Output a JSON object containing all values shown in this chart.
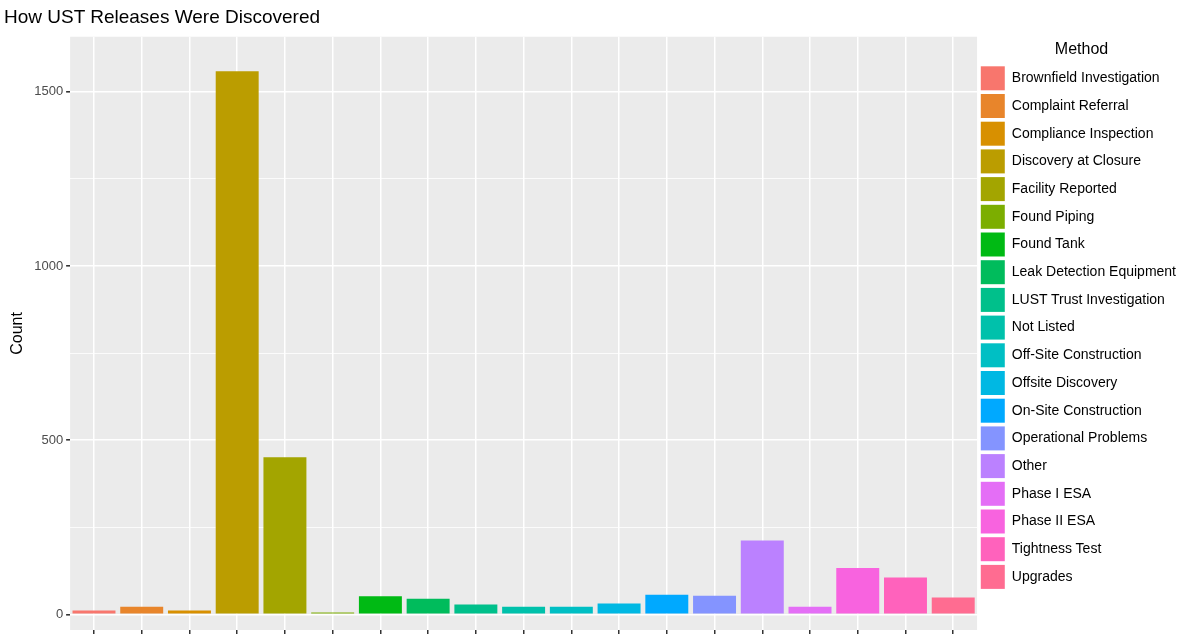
{
  "chart_data": {
    "type": "bar",
    "title": "How UST Releases Were Discovered",
    "ylabel": "Count",
    "legend_title": "Method",
    "categories": [
      null,
      null,
      null,
      null,
      null,
      null,
      null,
      null,
      null,
      null,
      null,
      null,
      null,
      null,
      null,
      null,
      null,
      null,
      null
    ],
    "series": [
      {
        "name": "Brownfield Investigation",
        "color": "#f8766d",
        "values": [
          11,
          null,
          null,
          null,
          null,
          null,
          null,
          null,
          null,
          null,
          null,
          null,
          null,
          null,
          null,
          null,
          null,
          null,
          null
        ]
      },
      {
        "name": "Complaint Referral",
        "color": "#e8852b",
        "values": [
          null,
          22,
          null,
          null,
          null,
          null,
          null,
          null,
          null,
          null,
          null,
          null,
          null,
          null,
          null,
          null,
          null,
          null,
          null
        ]
      },
      {
        "name": "Compliance Inspection",
        "color": "#d89000",
        "values": [
          null,
          null,
          11,
          null,
          null,
          null,
          null,
          null,
          null,
          null,
          null,
          null,
          null,
          null,
          null,
          null,
          null,
          null,
          null
        ]
      },
      {
        "name": "Discovery at Closure",
        "color": "#bb9d00",
        "values": [
          null,
          null,
          null,
          1559,
          null,
          null,
          null,
          null,
          null,
          null,
          null,
          null,
          null,
          null,
          null,
          null,
          null,
          null,
          null
        ]
      },
      {
        "name": "Facility Reported",
        "color": "#a3a500",
        "values": [
          null,
          null,
          null,
          null,
          451,
          null,
          null,
          null,
          null,
          null,
          null,
          null,
          null,
          null,
          null,
          null,
          null,
          null,
          null
        ]
      },
      {
        "name": "Found Piping",
        "color": "#7cae00",
        "values": [
          null,
          null,
          null,
          null,
          null,
          5,
          null,
          null,
          null,
          null,
          null,
          null,
          null,
          null,
          null,
          null,
          null,
          null,
          null
        ]
      },
      {
        "name": "Found Tank",
        "color": "#00ba14",
        "values": [
          null,
          null,
          null,
          null,
          null,
          null,
          52,
          null,
          null,
          null,
          null,
          null,
          null,
          null,
          null,
          null,
          null,
          null,
          null
        ]
      },
      {
        "name": "Leak Detection Equipment",
        "color": "#00bc5c",
        "values": [
          null,
          null,
          null,
          null,
          null,
          null,
          null,
          45,
          null,
          null,
          null,
          null,
          null,
          null,
          null,
          null,
          null,
          null,
          null
        ]
      },
      {
        "name": "LUST Trust Investigation",
        "color": "#00c08b",
        "values": [
          null,
          null,
          null,
          null,
          null,
          null,
          null,
          null,
          28,
          null,
          null,
          null,
          null,
          null,
          null,
          null,
          null,
          null,
          null
        ]
      },
      {
        "name": "Not Listed",
        "color": "#00c1ab",
        "values": [
          null,
          null,
          null,
          null,
          null,
          null,
          null,
          null,
          null,
          22,
          null,
          null,
          null,
          null,
          null,
          null,
          null,
          null,
          null
        ]
      },
      {
        "name": "Off-Site Construction",
        "color": "#00bfc4",
        "values": [
          null,
          null,
          null,
          null,
          null,
          null,
          null,
          null,
          null,
          null,
          22,
          null,
          null,
          null,
          null,
          null,
          null,
          null,
          null
        ]
      },
      {
        "name": "Offsite Discovery",
        "color": "#00b8e3",
        "values": [
          null,
          null,
          null,
          null,
          null,
          null,
          null,
          null,
          null,
          null,
          null,
          31,
          null,
          null,
          null,
          null,
          null,
          null,
          null
        ]
      },
      {
        "name": "On-Site Construction",
        "color": "#00a9ff",
        "values": [
          null,
          null,
          null,
          null,
          null,
          null,
          null,
          null,
          null,
          null,
          null,
          null,
          56,
          null,
          null,
          null,
          null,
          null,
          null
        ]
      },
      {
        "name": "Operational Problems",
        "color": "#8494ff",
        "values": [
          null,
          null,
          null,
          null,
          null,
          null,
          null,
          null,
          null,
          null,
          null,
          null,
          null,
          53,
          null,
          null,
          null,
          null,
          null
        ]
      },
      {
        "name": "Other",
        "color": "#bb81ff",
        "values": [
          null,
          null,
          null,
          null,
          null,
          null,
          null,
          null,
          null,
          null,
          null,
          null,
          null,
          null,
          212,
          null,
          null,
          null,
          null
        ]
      },
      {
        "name": "Phase I ESA",
        "color": "#e46ef6",
        "values": [
          null,
          null,
          null,
          null,
          null,
          null,
          null,
          null,
          null,
          null,
          null,
          null,
          null,
          null,
          null,
          22,
          null,
          null,
          null
        ]
      },
      {
        "name": "Phase II ESA",
        "color": "#f863df",
        "values": [
          null,
          null,
          null,
          null,
          null,
          null,
          null,
          null,
          null,
          null,
          null,
          null,
          null,
          null,
          null,
          null,
          133,
          null,
          null
        ]
      },
      {
        "name": "Tightness Test",
        "color": "#ff62bc",
        "values": [
          null,
          null,
          null,
          null,
          null,
          null,
          null,
          null,
          null,
          null,
          null,
          null,
          null,
          null,
          null,
          null,
          null,
          106,
          null
        ]
      },
      {
        "name": "Upgrades",
        "color": "#ff6c91",
        "values": [
          null,
          null,
          null,
          null,
          null,
          null,
          null,
          null,
          null,
          null,
          null,
          null,
          null,
          null,
          null,
          null,
          null,
          null,
          48
        ]
      }
    ],
    "ylim": [
      -45,
      1658
    ],
    "yticks": [
      0,
      {
        "value": 250,
        "label": null
      },
      500,
      {
        "value": 750,
        "label": null
      },
      1000,
      {
        "value": 1250,
        "label": null
      },
      1500
    ],
    "grid": true,
    "legend": "right",
    "tick_labels": "y"
  }
}
